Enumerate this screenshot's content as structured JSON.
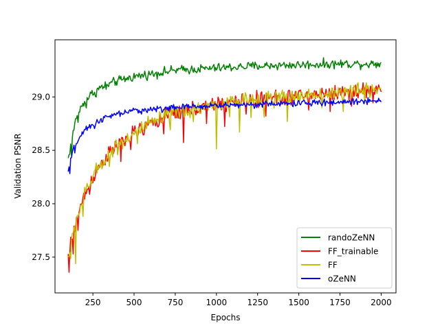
{
  "chart_data": {
    "type": "line",
    "title": "",
    "xlabel": "Epochs",
    "ylabel": "Validation PSNR",
    "xlim": [
      20,
      2090
    ],
    "ylim": [
      27.165,
      29.535
    ],
    "xticks": [
      250,
      500,
      750,
      1000,
      1250,
      1500,
      1750,
      2000
    ],
    "yticks": [
      27.5,
      28.0,
      28.5,
      29.0
    ],
    "xtick_labels": [
      "250",
      "500",
      "750",
      "1000",
      "1250",
      "1500",
      "1750",
      "2000"
    ],
    "ytick_labels": [
      "27.5",
      "28.0",
      "28.5",
      "29.0"
    ],
    "grid": false,
    "legend_position": "lower-right",
    "series": [
      {
        "name": "randoZeNN",
        "color": "#008000",
        "trend": [
          [
            100,
            28.42
          ],
          [
            150,
            28.82
          ],
          [
            200,
            28.96
          ],
          [
            250,
            29.04
          ],
          [
            300,
            29.09
          ],
          [
            400,
            29.15
          ],
          [
            500,
            29.19
          ],
          [
            750,
            29.25
          ],
          [
            1000,
            29.27
          ],
          [
            1250,
            29.29
          ],
          [
            1500,
            29.3
          ],
          [
            1750,
            29.31
          ],
          [
            2000,
            29.31
          ]
        ],
        "noise": 0.035,
        "dips": [
          [
            120,
            -0.12
          ],
          [
            160,
            -0.1
          ],
          [
            210,
            -0.08
          ],
          [
            270,
            -0.07
          ],
          [
            330,
            -0.05
          ]
        ]
      },
      {
        "name": "FF_trainable",
        "color": "#ff0000",
        "trend": [
          [
            100,
            27.52
          ],
          [
            150,
            27.85
          ],
          [
            200,
            28.08
          ],
          [
            250,
            28.25
          ],
          [
            300,
            28.38
          ],
          [
            400,
            28.55
          ],
          [
            500,
            28.66
          ],
          [
            600,
            28.75
          ],
          [
            750,
            28.85
          ],
          [
            1000,
            28.93
          ],
          [
            1250,
            28.98
          ],
          [
            1500,
            29.01
          ],
          [
            1750,
            29.04
          ],
          [
            2000,
            29.07
          ]
        ],
        "noise": 0.06,
        "dips": [
          [
            105,
            -0.25
          ],
          [
            130,
            -0.18
          ],
          [
            160,
            -0.15
          ],
          [
            230,
            -0.12
          ],
          [
            420,
            -0.15
          ],
          [
            480,
            -0.18
          ],
          [
            560,
            -0.13
          ],
          [
            680,
            -0.14
          ],
          [
            800,
            -0.3
          ],
          [
            940,
            -0.2
          ],
          [
            1050,
            -0.18
          ],
          [
            1180,
            -0.14
          ],
          [
            1300,
            -0.12
          ],
          [
            1430,
            -0.15
          ],
          [
            1560,
            -0.17
          ],
          [
            1690,
            -0.13
          ],
          [
            1820,
            -0.12
          ],
          [
            1950,
            -0.1
          ]
        ]
      },
      {
        "name": "FF",
        "color": "#bfbf00",
        "trend": [
          [
            100,
            27.5
          ],
          [
            150,
            27.85
          ],
          [
            200,
            28.08
          ],
          [
            250,
            28.25
          ],
          [
            300,
            28.38
          ],
          [
            400,
            28.55
          ],
          [
            500,
            28.66
          ],
          [
            600,
            28.75
          ],
          [
            750,
            28.85
          ],
          [
            1000,
            28.93
          ],
          [
            1250,
            28.98
          ],
          [
            1500,
            29.01
          ],
          [
            1750,
            29.04
          ],
          [
            2000,
            29.08
          ]
        ],
        "noise": 0.06,
        "dips": [
          [
            115,
            -0.15
          ],
          [
            145,
            -0.3
          ],
          [
            190,
            -0.12
          ],
          [
            350,
            -0.12
          ],
          [
            520,
            -0.14
          ],
          [
            720,
            -0.12
          ],
          [
            860,
            -0.16
          ],
          [
            1000,
            -0.45
          ],
          [
            1080,
            -0.2
          ],
          [
            1140,
            -0.25
          ],
          [
            1210,
            -0.19
          ],
          [
            1290,
            -0.12
          ],
          [
            1350,
            -0.14
          ],
          [
            1430,
            -0.3
          ],
          [
            1510,
            -0.1
          ],
          [
            1640,
            -0.12
          ],
          [
            1770,
            -0.13
          ],
          [
            1900,
            -0.11
          ]
        ]
      },
      {
        "name": "oZeNN",
        "color": "#0000ff",
        "trend": [
          [
            100,
            28.3
          ],
          [
            130,
            28.5
          ],
          [
            160,
            28.6
          ],
          [
            200,
            28.68
          ],
          [
            250,
            28.74
          ],
          [
            300,
            28.79
          ],
          [
            400,
            28.84
          ],
          [
            500,
            28.87
          ],
          [
            750,
            28.9
          ],
          [
            1000,
            28.92
          ],
          [
            1250,
            28.93
          ],
          [
            1500,
            28.94
          ],
          [
            1750,
            28.95
          ],
          [
            2000,
            28.97
          ]
        ],
        "noise": 0.025,
        "dips": [
          [
            110,
            -0.08
          ],
          [
            140,
            -0.06
          ],
          [
            260,
            -0.04
          ]
        ]
      }
    ]
  }
}
